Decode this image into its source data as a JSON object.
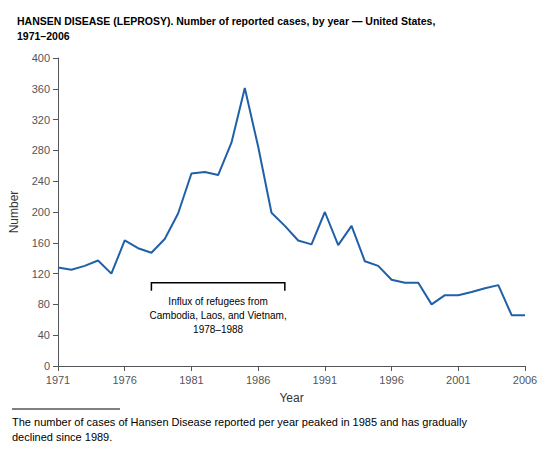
{
  "chart_data": {
    "type": "line",
    "title": "HANSEN DISEASE (LEPROSY). Number of reported cases, by year — United States,\n1971–2006",
    "xlabel": "Year",
    "ylabel": "Number",
    "footnote": "The number of cases of Hansen Disease reported per year peaked in 1985 and has gradually\ndeclined since 1989.",
    "x": [
      1971,
      1972,
      1973,
      1974,
      1975,
      1976,
      1977,
      1978,
      1979,
      1980,
      1981,
      1982,
      1983,
      1984,
      1985,
      1986,
      1987,
      1988,
      1989,
      1990,
      1991,
      1992,
      1993,
      1994,
      1995,
      1996,
      1997,
      1998,
      1999,
      2000,
      2001,
      2002,
      2003,
      2004,
      2005,
      2006
    ],
    "values": [
      128,
      125,
      130,
      137,
      120,
      163,
      153,
      147,
      165,
      198,
      250,
      252,
      248,
      290,
      361,
      285,
      199,
      182,
      163,
      158,
      200,
      157,
      182,
      136,
      130,
      112,
      108,
      108,
      80,
      92,
      92,
      96,
      101,
      105,
      66,
      66
    ],
    "color": "#2060a8",
    "xlim": [
      1971,
      2006
    ],
    "xticks": [
      1971,
      1976,
      1981,
      1986,
      1991,
      1996,
      2001,
      2006
    ],
    "ylim": [
      0,
      400
    ],
    "yticks": [
      0,
      40,
      80,
      120,
      160,
      200,
      240,
      280,
      320,
      360,
      400
    ],
    "grid": false,
    "annotations": [
      {
        "text": "Influx of refugees from\nCambodia, Laos, and Vietnam,\n1978–1988",
        "x": [
          1978,
          1988
        ],
        "y": 108
      }
    ]
  }
}
